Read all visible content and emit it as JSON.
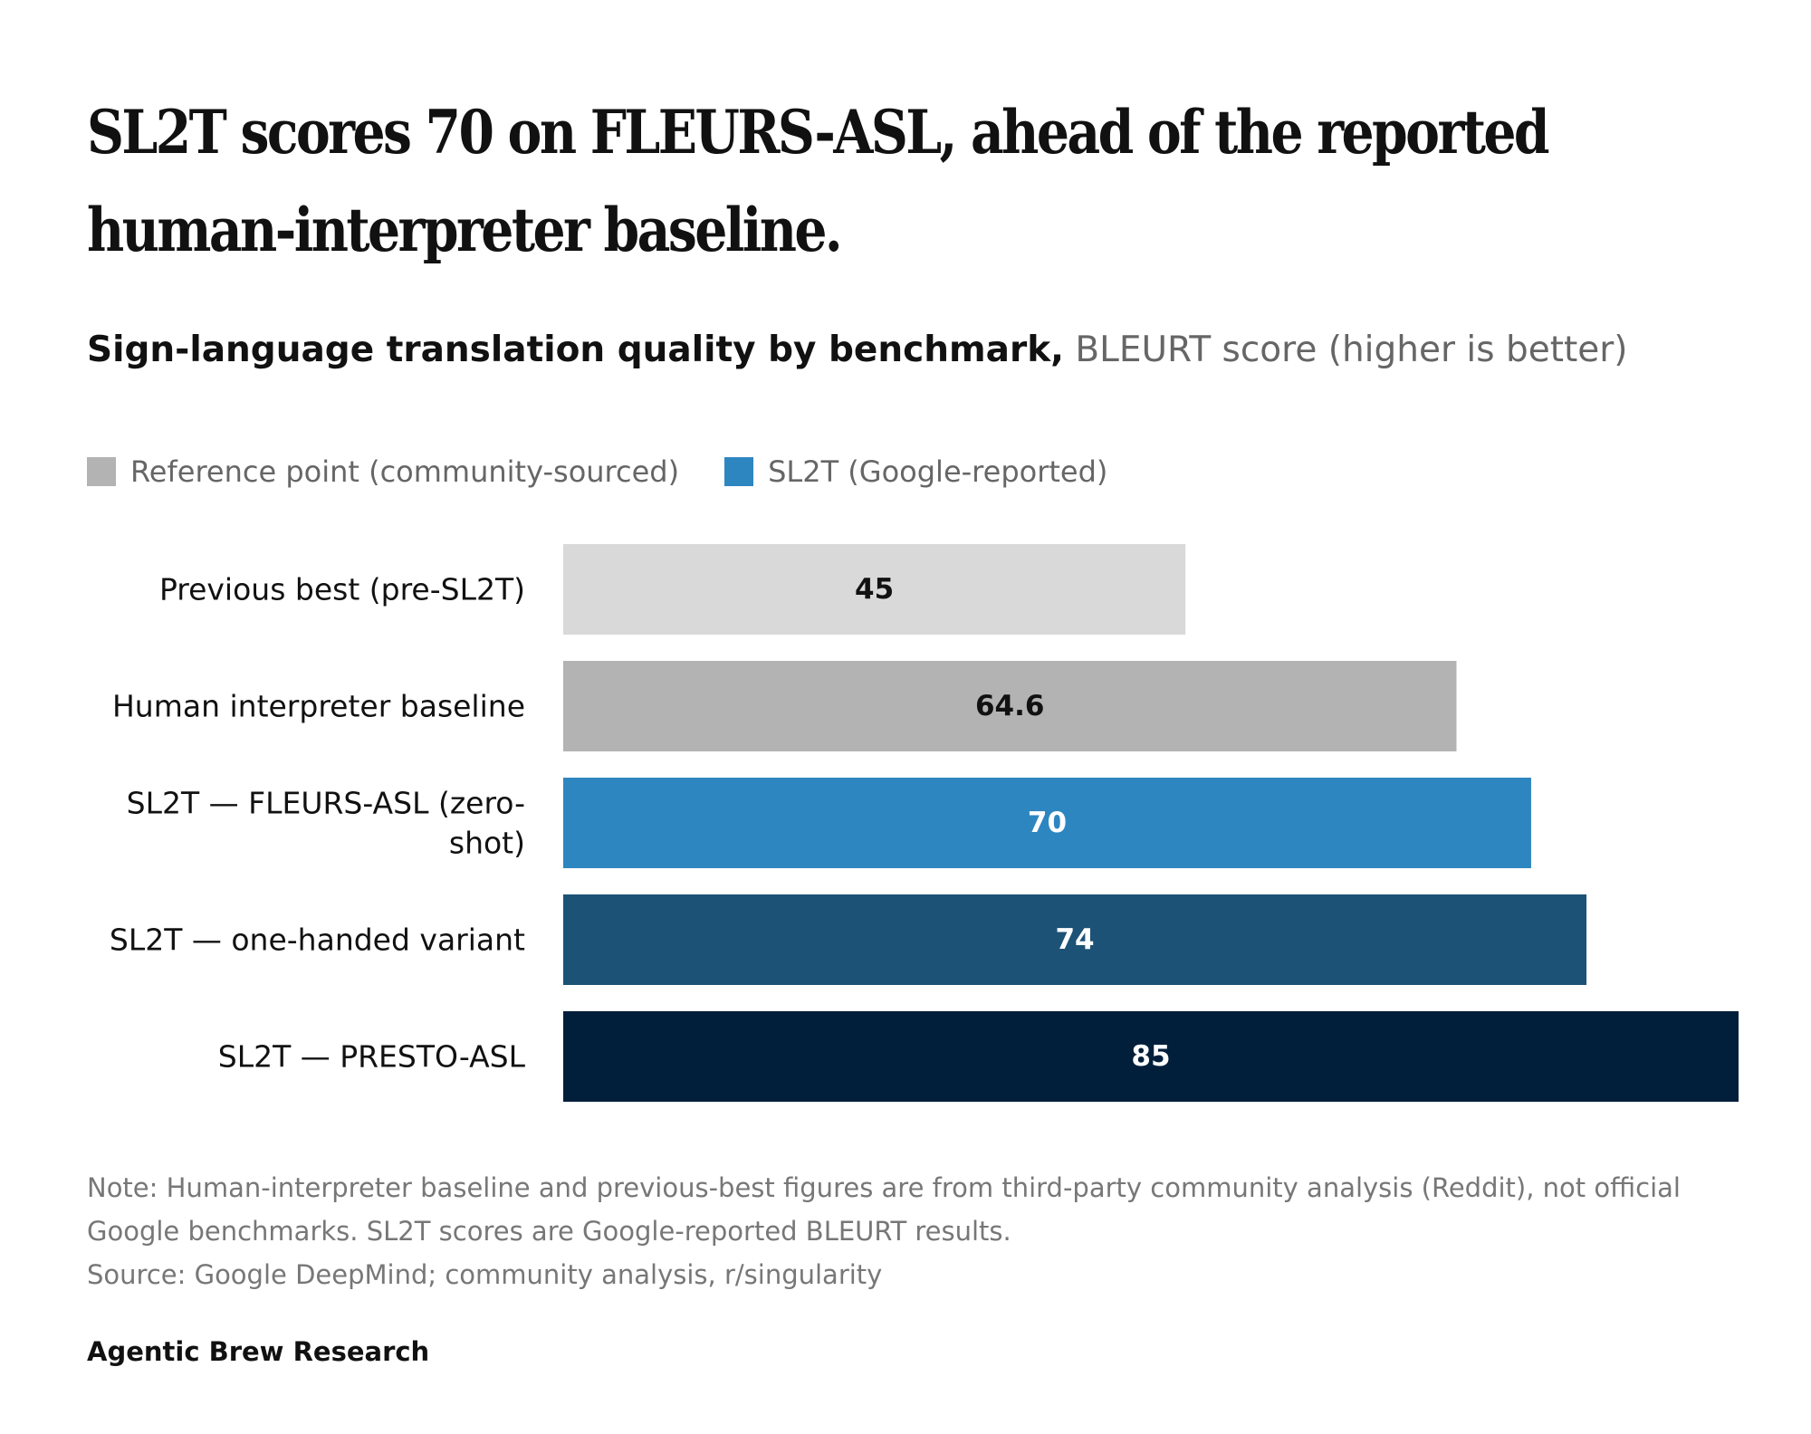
{
  "headline": "SL2T scores 70 on FLEURS-ASL, ahead of the reported human-interpreter baseline.",
  "subtitle": {
    "strong": "Sign-language translation quality by benchmark,",
    "light": "BLEURT score (higher is better)"
  },
  "legend": [
    {
      "label": "Reference point (community-sourced)",
      "color": "#b3b3b3"
    },
    {
      "label": "SL2T (Google-reported)",
      "color": "#2e86c1"
    }
  ],
  "chart_data": {
    "type": "bar",
    "orientation": "horizontal",
    "categories": [
      "Previous best (pre-SL2T)",
      "Human interpreter baseline",
      "SL2T — FLEURS-ASL (zero-shot)",
      "SL2T — one-handed variant",
      "SL2T — PRESTO-ASL"
    ],
    "category_label_lines": [
      [
        "Previous best (pre-SL2T)"
      ],
      [
        "Human interpreter baseline"
      ],
      [
        "SL2T — FLEURS-ASL (zero-",
        "shot)"
      ],
      [
        "SL2T — one-handed variant"
      ],
      [
        "SL2T — PRESTO-ASL"
      ]
    ],
    "values": [
      45,
      64.6,
      70,
      74,
      85
    ],
    "value_labels": [
      "45",
      "64.6",
      "70",
      "74",
      "85"
    ],
    "groups": [
      "Reference point (community-sourced)",
      "Reference point (community-sourced)",
      "SL2T (Google-reported)",
      "SL2T (Google-reported)",
      "SL2T (Google-reported)"
    ],
    "bar_colors": [
      "#d9d9d9",
      "#b3b3b3",
      "#2e86c1",
      "#1c5276",
      "#011f3b"
    ],
    "label_colors": [
      "#111111",
      "#111111",
      "#ffffff",
      "#ffffff",
      "#ffffff"
    ],
    "xlim": [
      0,
      85
    ],
    "grid": false,
    "legend_position": "top-left"
  },
  "note": "Note: Human-interpreter baseline and previous-best figures are from third-party community analysis (Reddit), not official Google benchmarks. SL2T scores are Google-reported BLEURT results.",
  "source": "Source: Google DeepMind; community analysis, r/singularity",
  "footer": "Agentic Brew Research"
}
